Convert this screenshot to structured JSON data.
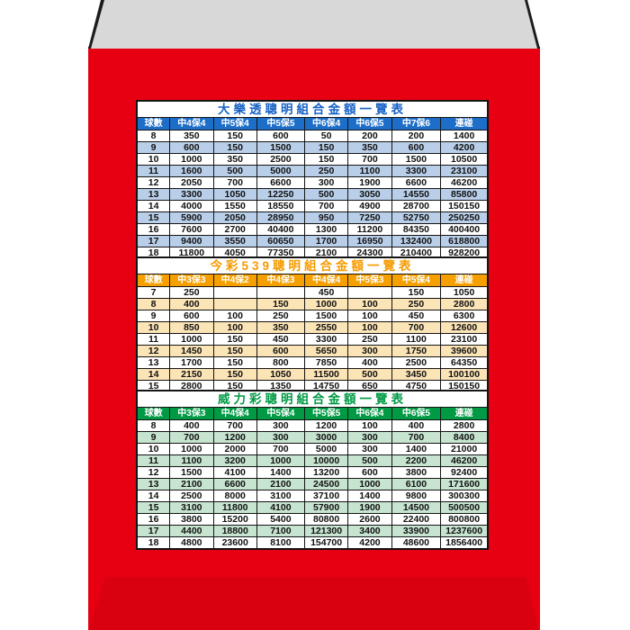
{
  "page": {
    "background_color": "#ffffff"
  },
  "envelope": {
    "body_color": "#e60012",
    "top_flap_color": "#d8d8d8",
    "top_flap_edge_color": "#1c1c1c",
    "bottom_flap_color": "#d90010"
  },
  "tables": [
    {
      "title": "大樂透聰明組合金額一覽表",
      "theme": {
        "title_color": "#1661c4",
        "header_bg": "#1c6ec8",
        "header_text_color": "#ffffff",
        "stripe_bg": "#b9cfe9",
        "row_bg": "#ffffff"
      },
      "columns": [
        "球數",
        "中4保4",
        "中5保4",
        "中5保5",
        "中6保4",
        "中6保5",
        "中7保6",
        "連碰"
      ],
      "rows": [
        [
          "8",
          "350",
          "150",
          "600",
          "50",
          "200",
          "200",
          "1400"
        ],
        [
          "9",
          "600",
          "150",
          "1500",
          "150",
          "350",
          "600",
          "4200"
        ],
        [
          "10",
          "1000",
          "350",
          "2500",
          "150",
          "700",
          "1500",
          "10500"
        ],
        [
          "11",
          "1600",
          "500",
          "5000",
          "250",
          "1100",
          "3300",
          "23100"
        ],
        [
          "12",
          "2050",
          "700",
          "6600",
          "300",
          "1900",
          "6600",
          "46200"
        ],
        [
          "13",
          "3300",
          "1050",
          "12250",
          "500",
          "3050",
          "14550",
          "85800"
        ],
        [
          "14",
          "4000",
          "1550",
          "18550",
          "700",
          "4900",
          "28700",
          "150150"
        ],
        [
          "15",
          "5900",
          "2050",
          "28950",
          "950",
          "7250",
          "52750",
          "250250"
        ],
        [
          "16",
          "7600",
          "2700",
          "40400",
          "1300",
          "11200",
          "84350",
          "400400"
        ],
        [
          "17",
          "9400",
          "3550",
          "60650",
          "1700",
          "16950",
          "132400",
          "618800"
        ],
        [
          "18",
          "11800",
          "4050",
          "77350",
          "2100",
          "24300",
          "210400",
          "928200"
        ]
      ]
    },
    {
      "title": "今彩539聰明組合金額一覽表",
      "theme": {
        "title_color": "#f59b00",
        "header_bg": "#f5a000",
        "header_text_color": "#ffffff",
        "stripe_bg": "#fbe4b6",
        "row_bg": "#ffffff"
      },
      "columns": [
        "球數",
        "中3保3",
        "中4保2",
        "中4保3",
        "中4保4",
        "中5保3",
        "中5保4",
        "連碰"
      ],
      "rows": [
        [
          "7",
          "250",
          "",
          "",
          "450",
          "",
          "150",
          "1050"
        ],
        [
          "8",
          "400",
          "",
          "150",
          "1000",
          "100",
          "250",
          "2800"
        ],
        [
          "9",
          "600",
          "100",
          "250",
          "1500",
          "100",
          "450",
          "6300"
        ],
        [
          "10",
          "850",
          "100",
          "350",
          "2550",
          "100",
          "700",
          "12600"
        ],
        [
          "11",
          "1000",
          "150",
          "450",
          "3300",
          "250",
          "1100",
          "23100"
        ],
        [
          "12",
          "1450",
          "150",
          "600",
          "5650",
          "300",
          "1750",
          "39600"
        ],
        [
          "13",
          "1700",
          "150",
          "800",
          "7850",
          "400",
          "2500",
          "64350"
        ],
        [
          "14",
          "2150",
          "150",
          "1050",
          "11500",
          "500",
          "3450",
          "100100"
        ],
        [
          "15",
          "2800",
          "150",
          "1350",
          "14750",
          "650",
          "4750",
          "150150"
        ]
      ]
    },
    {
      "title": "威力彩聰明組合金額一覽表",
      "theme": {
        "title_color": "#009a44",
        "header_bg": "#009a44",
        "header_text_color": "#ffffff",
        "stripe_bg": "#c6e4cf",
        "row_bg": "#ffffff"
      },
      "columns": [
        "球數",
        "中3保3",
        "中4保4",
        "中5保4",
        "中5保5",
        "中6保4",
        "中6保5",
        "連碰"
      ],
      "rows": [
        [
          "8",
          "400",
          "700",
          "300",
          "1200",
          "100",
          "400",
          "2800"
        ],
        [
          "9",
          "700",
          "1200",
          "300",
          "3000",
          "300",
          "700",
          "8400"
        ],
        [
          "10",
          "1000",
          "2000",
          "700",
          "5000",
          "300",
          "1400",
          "21000"
        ],
        [
          "11",
          "1100",
          "3200",
          "1000",
          "10000",
          "500",
          "2200",
          "46200"
        ],
        [
          "12",
          "1500",
          "4100",
          "1400",
          "13200",
          "600",
          "3800",
          "92400"
        ],
        [
          "13",
          "2100",
          "6600",
          "2100",
          "24500",
          "1000",
          "6100",
          "171600"
        ],
        [
          "14",
          "2500",
          "8000",
          "3100",
          "37100",
          "1400",
          "9800",
          "300300"
        ],
        [
          "15",
          "3100",
          "11800",
          "4100",
          "57900",
          "1900",
          "14500",
          "500500"
        ],
        [
          "16",
          "3800",
          "15200",
          "5400",
          "80800",
          "2600",
          "22400",
          "800800"
        ],
        [
          "17",
          "4400",
          "18800",
          "7100",
          "121300",
          "3400",
          "33900",
          "1237600"
        ],
        [
          "18",
          "4800",
          "23600",
          "8100",
          "154700",
          "4200",
          "48600",
          "1856400"
        ]
      ]
    }
  ]
}
